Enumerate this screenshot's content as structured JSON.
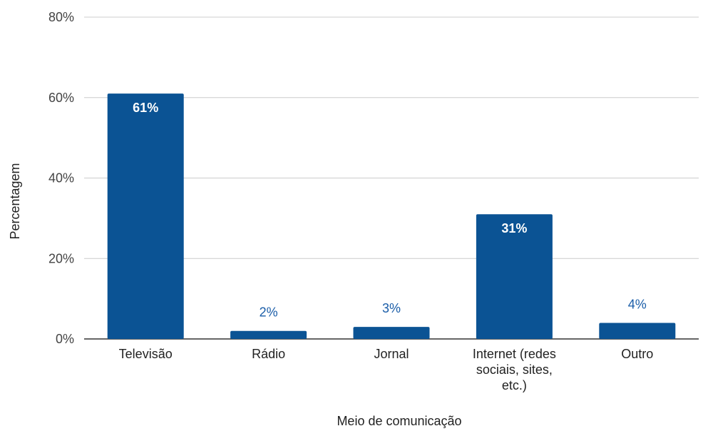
{
  "chart_data": {
    "type": "bar",
    "title": "",
    "xlabel": "Meio de comunicação",
    "ylabel": "Percentagem",
    "categories": [
      [
        "Televisão"
      ],
      [
        "Rádio"
      ],
      [
        "Jornal"
      ],
      [
        "Internet (redes",
        "sociais, sites,",
        "etc.)"
      ],
      [
        "Outro"
      ]
    ],
    "values": [
      61,
      2,
      3,
      31,
      4
    ],
    "data_labels": [
      "61%",
      "2%",
      "3%",
      "31%",
      "4%"
    ],
    "ylim": [
      0,
      80
    ],
    "yticks": [
      0,
      20,
      40,
      60,
      80
    ],
    "ytick_labels": [
      "0%",
      "20%",
      "40%",
      "60%",
      "80%"
    ],
    "grid": true,
    "legend": "none",
    "colors": {
      "bar": "#0b5394",
      "gridline": "#cccccc",
      "axis": "#333333",
      "label_outside": "#1a5da8",
      "label_inside": "#ffffff"
    }
  }
}
